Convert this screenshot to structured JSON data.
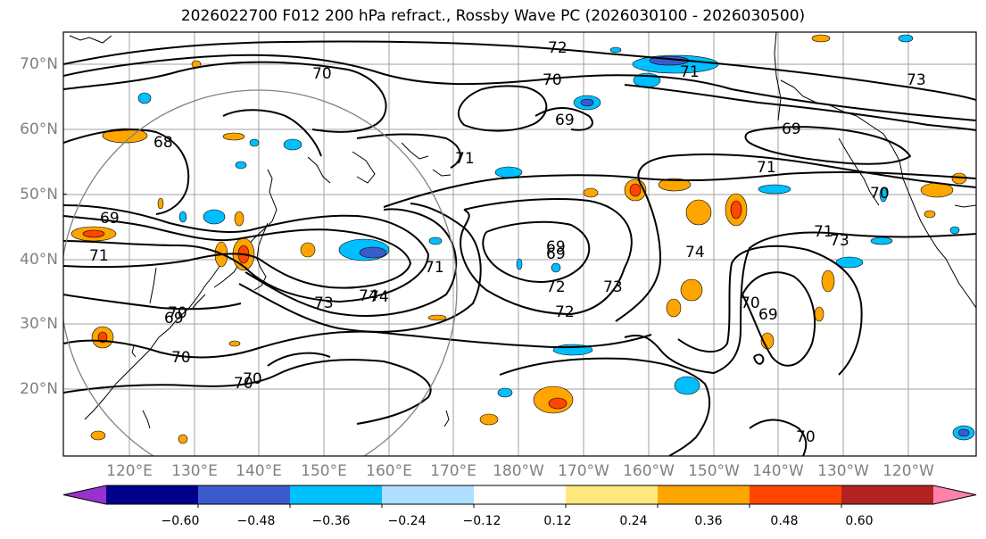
{
  "title": "2026022700 F012 200 hPa refract., Rossby Wave PC (2026030100 - 2026030500)",
  "lat_labels": [
    "70°N",
    "60°N",
    "50°N",
    "40°N",
    "30°N",
    "20°N"
  ],
  "lon_labels": [
    "120°E",
    "130°E",
    "140°E",
    "150°E",
    "160°E",
    "170°E",
    "180°W",
    "170°W",
    "160°W",
    "150°W",
    "140°W",
    "130°W",
    "120°W"
  ],
  "contour_labels": [
    "72",
    "71",
    "70",
    "70",
    "73",
    "69",
    "69",
    "71",
    "68",
    "69",
    "71",
    "69",
    "71",
    "70",
    "70",
    "70",
    "70",
    "71",
    "72",
    "69",
    "73",
    "72",
    "74",
    "73",
    "74",
    "71",
    "73",
    "70",
    "74",
    "69",
    "70",
    "70",
    "69"
  ],
  "colorbar": {
    "ticks": [
      "−0.60",
      "−0.48",
      "−0.36",
      "−0.24",
      "−0.12",
      "0.12",
      "0.24",
      "0.36",
      "0.48",
      "0.60"
    ],
    "colors": [
      "#9932cc",
      "#00008b",
      "#3a5bcb",
      "#00bfff",
      "#b0e0ff",
      "#ffffff",
      "#ffe97f",
      "#ffa500",
      "#ff4500",
      "#b22222",
      "#ff82ab"
    ]
  },
  "colors": {
    "contour": "#000000",
    "grid": "#a0a0a0",
    "circle": "#808080",
    "coast": "#000000"
  }
}
